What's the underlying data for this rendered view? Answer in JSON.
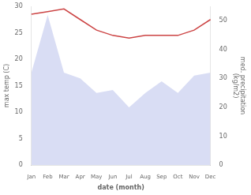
{
  "chart_data": {
    "type": "line",
    "xlabel": "date (month)",
    "ylabel": "max temp (C)",
    "y2label": "med. precipitation\n(kg/m2)",
    "categories": [
      "Jan",
      "Feb",
      "Mar",
      "Apr",
      "May",
      "Jun",
      "Jul",
      "Aug",
      "Sep",
      "Oct",
      "Nov",
      "Dec"
    ],
    "series": [
      {
        "type": "area",
        "axis": "y2",
        "color": "#c5cbee",
        "values": [
          32,
          52,
          32,
          30,
          25,
          26,
          20,
          25,
          29,
          25,
          31,
          32
        ]
      },
      {
        "type": "line",
        "color": "#cc4444",
        "values": [
          28.5,
          29.0,
          29.5,
          27.5,
          25.5,
          24.5,
          24.0,
          24.5,
          24.5,
          24.5,
          25.5,
          27.5
        ]
      }
    ],
    "ylim": [
      0,
      30
    ],
    "yticks": [
      0,
      5,
      10,
      15,
      20,
      25,
      30
    ],
    "y2lim": [
      0,
      55
    ],
    "y2ticks": [
      0,
      10,
      20,
      30,
      40,
      50
    ],
    "grid": false,
    "background_color": "#ffffff"
  }
}
